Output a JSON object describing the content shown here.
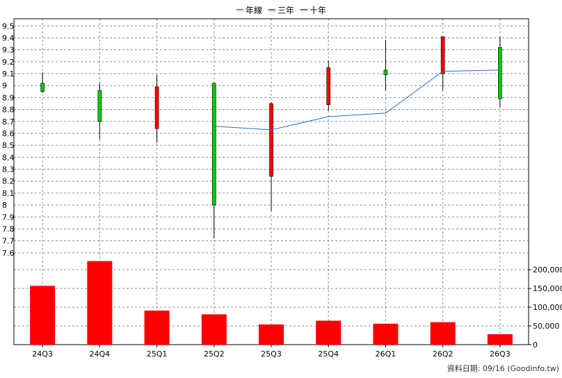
{
  "chart_data": {
    "type": "candlestick+bar",
    "legend": [
      {
        "label": "年線",
        "color": "#1f6fd0"
      },
      {
        "label": "三年",
        "color": "#ff0000"
      },
      {
        "label": "十年",
        "color": "#a00040"
      }
    ],
    "legend_placement": "top-center",
    "categories": [
      "24Q3",
      "24Q4",
      "25Q1",
      "25Q2",
      "25Q3",
      "25Q4",
      "26Q1",
      "26Q2",
      "26Q3"
    ],
    "price_axis": {
      "ylim": [
        7.5,
        9.56
      ],
      "ticks": [
        "7.6",
        "7.7",
        "7.8",
        "7.9",
        "8",
        "8.1",
        "8.2",
        "8.3",
        "8.4",
        "8.5",
        "8.6",
        "8.7",
        "8.8",
        "8.9",
        "9",
        "9.1",
        "9.2",
        "9.3",
        "9.4",
        "9.5"
      ]
    },
    "candles": [
      {
        "open": 9.02,
        "high": 9.11,
        "low": 8.94,
        "close": 8.95
      },
      {
        "open": 8.96,
        "high": 9.02,
        "low": 8.55,
        "close": 8.7
      },
      {
        "open": 8.64,
        "high": 9.09,
        "low": 8.52,
        "close": 8.99
      },
      {
        "open": 9.02,
        "high": 9.02,
        "low": 7.72,
        "close": 8.0
      },
      {
        "open": 8.24,
        "high": 8.86,
        "low": 7.95,
        "close": 8.85
      },
      {
        "open": 8.84,
        "high": 9.21,
        "low": 8.79,
        "close": 9.15
      },
      {
        "open": 9.13,
        "high": 9.38,
        "low": 8.96,
        "close": 9.09
      },
      {
        "open": 9.1,
        "high": 9.41,
        "low": 8.96,
        "close": 9.41
      },
      {
        "open": 9.32,
        "high": 9.41,
        "low": 8.82,
        "close": 8.89
      }
    ],
    "series": [
      {
        "name": "年線",
        "values": [
          null,
          null,
          null,
          8.66,
          8.63,
          8.74,
          8.77,
          9.12,
          9.13
        ]
      }
    ],
    "volume": {
      "values": [
        157000,
        223000,
        91000,
        81000,
        54000,
        64000,
        56000,
        60000,
        28000
      ],
      "ylim": [
        0,
        230000
      ],
      "ticks": [
        "0",
        "50,000",
        "100,000",
        "150,000",
        "200,000"
      ],
      "color": "#ff0000"
    },
    "colors": {
      "up": "#ff0000",
      "down": "#00cc00",
      "grid": "#999999"
    },
    "grid": true,
    "footer": "資料日期: 09/16  (Goodinfo.tw)"
  }
}
